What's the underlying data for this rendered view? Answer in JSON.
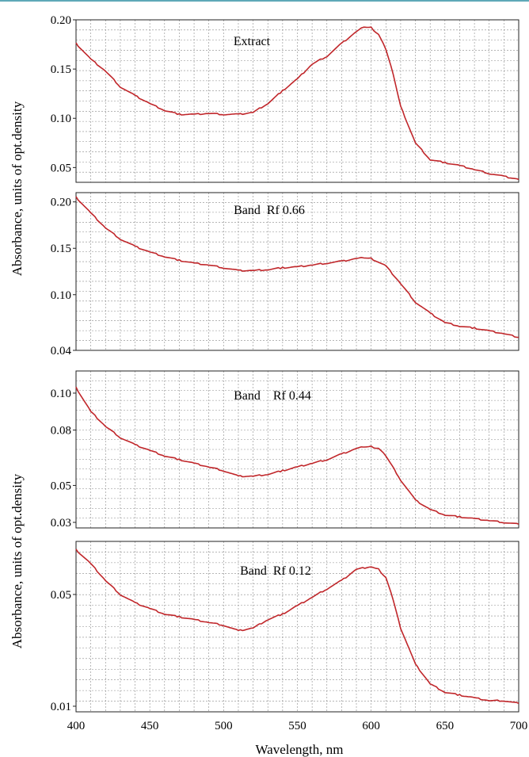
{
  "figure": {
    "ylabel_top": "Absorbance, units of opt.density",
    "ylabel_bottom": "Absorbance, units of opt.density",
    "xlabel": "Wavelength, nm",
    "x_ticks": [
      "400",
      "450",
      "500",
      "550",
      "600",
      "650",
      "700"
    ]
  },
  "chart_data": [
    {
      "type": "line",
      "title": "Extract",
      "xlim": [
        400,
        700
      ],
      "ylim": [
        0.035,
        0.2
      ],
      "y_ticks": [
        0.05,
        0.1,
        0.15,
        0.2
      ],
      "y_tick_labels": [
        "0.05",
        "0.10",
        "0.15",
        "0.20"
      ],
      "grid": true,
      "color": "#c0262a",
      "x": [
        400,
        410,
        420,
        430,
        440,
        450,
        460,
        470,
        480,
        490,
        500,
        510,
        520,
        530,
        540,
        550,
        560,
        570,
        580,
        590,
        595,
        600,
        605,
        610,
        615,
        620,
        630,
        640,
        650,
        660,
        670,
        680,
        690,
        700
      ],
      "y": [
        0.176,
        0.16,
        0.148,
        0.132,
        0.123,
        0.115,
        0.108,
        0.104,
        0.104,
        0.105,
        0.104,
        0.104,
        0.106,
        0.115,
        0.128,
        0.14,
        0.155,
        0.163,
        0.176,
        0.188,
        0.193,
        0.192,
        0.185,
        0.17,
        0.145,
        0.112,
        0.075,
        0.058,
        0.055,
        0.052,
        0.048,
        0.044,
        0.041,
        0.038
      ]
    },
    {
      "type": "line",
      "title": "Band  Rf 0.66",
      "xlim": [
        400,
        700
      ],
      "ylim": [
        0.04,
        0.21
      ],
      "y_ticks": [
        0.04,
        0.1,
        0.15,
        0.2
      ],
      "y_tick_labels": [
        "0.04",
        "0.10",
        "0.15",
        "0.20"
      ],
      "grid": true,
      "color": "#c0262a",
      "x": [
        400,
        410,
        420,
        430,
        440,
        450,
        460,
        470,
        480,
        490,
        500,
        510,
        520,
        530,
        540,
        550,
        560,
        570,
        580,
        590,
        595,
        600,
        610,
        620,
        630,
        640,
        650,
        660,
        670,
        680,
        690,
        700
      ],
      "y": [
        0.205,
        0.188,
        0.172,
        0.16,
        0.152,
        0.146,
        0.141,
        0.137,
        0.134,
        0.132,
        0.129,
        0.126,
        0.126,
        0.127,
        0.129,
        0.13,
        0.132,
        0.134,
        0.136,
        0.139,
        0.14,
        0.139,
        0.131,
        0.112,
        0.092,
        0.08,
        0.07,
        0.066,
        0.064,
        0.061,
        0.058,
        0.054
      ]
    },
    {
      "type": "line",
      "title": "Band    Rf 0.44",
      "xlim": [
        400,
        700
      ],
      "ylim": [
        0.027,
        0.112
      ],
      "y_ticks": [
        0.03,
        0.05,
        0.08,
        0.1
      ],
      "y_tick_labels": [
        "0.03",
        "0.05",
        "0.08",
        "0.10"
      ],
      "grid": true,
      "color": "#c0262a",
      "x": [
        400,
        410,
        420,
        430,
        440,
        450,
        460,
        470,
        480,
        490,
        500,
        510,
        520,
        530,
        540,
        550,
        560,
        570,
        580,
        590,
        595,
        600,
        605,
        610,
        620,
        630,
        640,
        650,
        660,
        670,
        680,
        690,
        700
      ],
      "y": [
        0.103,
        0.09,
        0.082,
        0.076,
        0.072,
        0.069,
        0.066,
        0.064,
        0.062,
        0.06,
        0.058,
        0.055,
        0.055,
        0.056,
        0.058,
        0.06,
        0.062,
        0.064,
        0.067,
        0.07,
        0.071,
        0.071,
        0.07,
        0.066,
        0.053,
        0.042,
        0.037,
        0.034,
        0.033,
        0.032,
        0.031,
        0.03,
        0.029
      ]
    },
    {
      "type": "line",
      "title": "Band  Rf 0.12",
      "xlim": [
        400,
        700
      ],
      "ylim": [
        0.008,
        0.069
      ],
      "y_ticks": [
        0.01,
        0.05
      ],
      "y_tick_labels": [
        "0.01",
        "0.05"
      ],
      "grid": true,
      "color": "#c0262a",
      "x": [
        400,
        410,
        420,
        430,
        440,
        450,
        460,
        470,
        480,
        490,
        500,
        510,
        520,
        530,
        540,
        550,
        560,
        570,
        580,
        590,
        600,
        605,
        610,
        615,
        620,
        630,
        640,
        650,
        660,
        670,
        680,
        690,
        700
      ],
      "y": [
        0.066,
        0.061,
        0.055,
        0.05,
        0.047,
        0.045,
        0.043,
        0.042,
        0.041,
        0.04,
        0.039,
        0.037,
        0.038,
        0.041,
        0.043,
        0.046,
        0.049,
        0.052,
        0.055,
        0.059,
        0.06,
        0.059,
        0.056,
        0.048,
        0.038,
        0.025,
        0.018,
        0.015,
        0.014,
        0.013,
        0.012,
        0.012,
        0.011
      ]
    }
  ]
}
